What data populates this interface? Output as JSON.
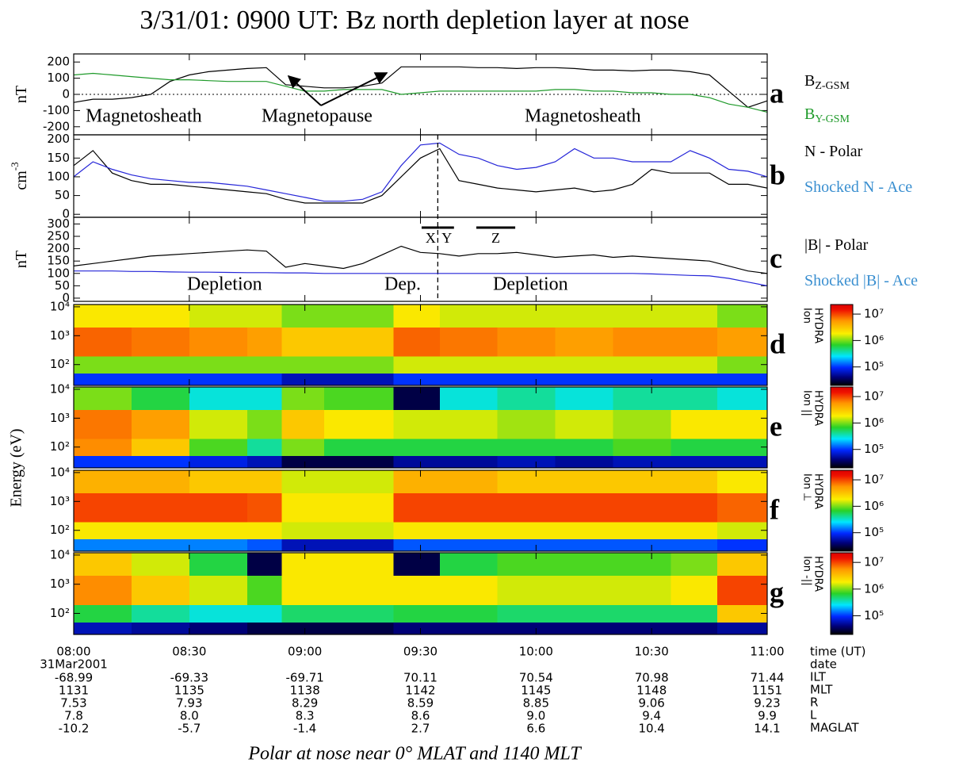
{
  "title": "3/31/01: 0900 UT: Bz north depletion layer at nose",
  "footer": "Polar at nose near 0° MLAT and 1140 MLT",
  "shared_ylabel": "Energy (eV)",
  "time_axis": {
    "xlim": [
      0,
      180
    ],
    "xticks": [
      {
        "value": 0,
        "label": "08:00"
      },
      {
        "value": 30,
        "label": "08:30"
      },
      {
        "value": 60,
        "label": "09:00"
      },
      {
        "value": 90,
        "label": "09:30"
      },
      {
        "value": 120,
        "label": "10:00"
      },
      {
        "value": 150,
        "label": "10:30"
      },
      {
        "value": 180,
        "label": "11:00"
      }
    ]
  },
  "ephemeris": {
    "labels": [
      "time (UT)",
      "date",
      "ILT",
      "MLT",
      "R",
      "L",
      "MAGLAT"
    ],
    "date": "31Mar2001",
    "rows": [
      [
        "-68.99",
        "-69.33",
        "-69.71",
        "70.11",
        "70.54",
        "70.98",
        "71.44"
      ],
      [
        "1131",
        "1135",
        "1138",
        "1142",
        "1145",
        "1148",
        "1151"
      ],
      [
        "7.53",
        "7.93",
        "8.29",
        "8.59",
        "8.85",
        "9.06",
        "9.23"
      ],
      [
        "7.8",
        "8.0",
        "8.3",
        "8.6",
        "9.0",
        "9.4",
        "9.9"
      ],
      [
        "-10.2",
        "-5.7",
        "-1.4",
        "2.7",
        "6.6",
        "10.4",
        "14.1"
      ]
    ]
  },
  "chart_data": [
    {
      "type": "line",
      "panel_label": "a",
      "ylabel": "nT",
      "ylim": [
        -250,
        250
      ],
      "yticks": [
        -200,
        -100,
        0,
        100,
        200
      ],
      "zero_line": true,
      "x": [
        0,
        5,
        10,
        15,
        20,
        25,
        30,
        35,
        40,
        45,
        50,
        55,
        60,
        65,
        70,
        75,
        80,
        85,
        90,
        95,
        100,
        105,
        110,
        115,
        120,
        125,
        130,
        135,
        140,
        145,
        150,
        155,
        160,
        165,
        170,
        175,
        180
      ],
      "series": [
        {
          "name": "B",
          "subscript": "Z-GSM",
          "color": "#000000",
          "values": [
            -50,
            -30,
            -30,
            -20,
            0,
            80,
            120,
            140,
            150,
            160,
            165,
            60,
            50,
            40,
            40,
            50,
            70,
            170,
            170,
            170,
            170,
            165,
            165,
            160,
            165,
            165,
            160,
            150,
            150,
            145,
            150,
            150,
            140,
            120,
            20,
            -80,
            -40
          ]
        },
        {
          "name": "B",
          "subscript": "Y-GSM",
          "color": "#1f9a2a",
          "values": [
            120,
            130,
            120,
            110,
            100,
            90,
            90,
            85,
            80,
            80,
            80,
            50,
            20,
            20,
            30,
            30,
            30,
            0,
            10,
            20,
            20,
            20,
            20,
            20,
            20,
            30,
            30,
            20,
            20,
            10,
            10,
            0,
            0,
            -20,
            -60,
            -80,
            -110
          ]
        }
      ],
      "annotations": [
        "Magnetosheath",
        "Magnetopause",
        "Magnetosheath"
      ]
    },
    {
      "type": "line",
      "panel_label": "b",
      "ylabel": "cm",
      "ylabel_sup": "-3",
      "ylim": [
        -8,
        212
      ],
      "yticks": [
        0,
        50,
        100,
        150,
        200
      ],
      "vline_x": 94.5,
      "x": [
        0,
        5,
        10,
        15,
        20,
        25,
        30,
        35,
        40,
        45,
        50,
        55,
        60,
        65,
        70,
        75,
        80,
        85,
        90,
        95,
        100,
        105,
        110,
        115,
        120,
        125,
        130,
        135,
        140,
        145,
        150,
        155,
        160,
        165,
        170,
        175,
        180
      ],
      "series": [
        {
          "name": "N - Polar",
          "color": "#000000",
          "values": [
            130,
            170,
            110,
            90,
            80,
            80,
            75,
            70,
            65,
            60,
            55,
            40,
            30,
            30,
            30,
            30,
            50,
            100,
            150,
            175,
            90,
            80,
            70,
            65,
            60,
            65,
            70,
            60,
            65,
            80,
            120,
            110,
            110,
            110,
            80,
            80,
            70
          ]
        },
        {
          "name": "Shocked N - Ace",
          "color": "#2525d8",
          "legend_color": "#3a8fd0",
          "values": [
            100,
            140,
            120,
            105,
            95,
            90,
            85,
            85,
            80,
            75,
            65,
            55,
            45,
            35,
            35,
            40,
            60,
            130,
            185,
            190,
            160,
            150,
            130,
            120,
            125,
            140,
            175,
            150,
            150,
            140,
            140,
            140,
            170,
            150,
            120,
            115,
            100
          ]
        }
      ]
    },
    {
      "type": "line",
      "panel_label": "c",
      "ylabel": "nT",
      "ylim": [
        -13,
        327
      ],
      "yticks": [
        0,
        50,
        100,
        150,
        200,
        250,
        300
      ],
      "x": [
        0,
        5,
        10,
        15,
        20,
        25,
        30,
        35,
        40,
        45,
        50,
        55,
        60,
        65,
        70,
        75,
        80,
        85,
        90,
        95,
        100,
        105,
        110,
        115,
        120,
        125,
        130,
        135,
        140,
        145,
        150,
        155,
        160,
        165,
        170,
        175,
        180
      ],
      "series": [
        {
          "name": "|B| - Polar",
          "color": "#000000",
          "values": [
            130,
            140,
            150,
            160,
            170,
            175,
            180,
            185,
            190,
            195,
            190,
            125,
            140,
            130,
            120,
            140,
            175,
            210,
            185,
            180,
            170,
            180,
            180,
            185,
            175,
            165,
            170,
            175,
            165,
            170,
            165,
            160,
            155,
            150,
            130,
            110,
            100
          ]
        },
        {
          "name": "Shocked |B| - Ace",
          "color": "#2525d8",
          "legend_color": "#3a8fd0",
          "values": [
            110,
            110,
            110,
            108,
            108,
            106,
            105,
            105,
            104,
            103,
            103,
            102,
            102,
            100,
            100,
            100,
            100,
            100,
            100,
            100,
            100,
            100,
            100,
            100,
            100,
            100,
            100,
            100,
            100,
            100,
            98,
            95,
            92,
            90,
            80,
            65,
            50
          ]
        }
      ],
      "intervals": [
        {
          "label": "X",
          "x": [
            90.3,
            95
          ]
        },
        {
          "label": "Y",
          "x": [
            95,
            98.7
          ]
        },
        {
          "label": "Z",
          "x": [
            104.5,
            114.6
          ]
        }
      ],
      "annotations": [
        "Depletion",
        "Dep.",
        "Depletion"
      ]
    },
    {
      "type": "heatmap",
      "panel_label": "d",
      "log_y": true,
      "ylim": [
        19,
        12000
      ],
      "yticks": [
        {
          "value": 100,
          "label": "10²"
        },
        {
          "value": 1000,
          "label": "10³"
        },
        {
          "value": 10000,
          "label": "10⁴"
        }
      ],
      "time_bins": [
        0,
        15,
        30,
        45,
        54,
        65,
        75,
        83,
        95,
        110,
        125,
        140,
        155,
        167,
        180
      ],
      "energy_bins": [
        19,
        50,
        200,
        2000,
        12000
      ],
      "z": [
        [
          100000.0,
          100000.0,
          100000.0,
          100000.0,
          60000.0,
          60000.0,
          60000.0,
          100000.0,
          100000.0,
          100000.0,
          100000.0,
          100000.0,
          100000.0,
          100000.0
        ],
        [
          1000000.0,
          1000000.0,
          1000000.0,
          1000000.0,
          1000000.0,
          1000000.0,
          1000000.0,
          1500000.0,
          1500000.0,
          1500000.0,
          1500000.0,
          1500000.0,
          1500000.0,
          1000000.0
        ],
        [
          8000000.0,
          7000000.0,
          6000000.0,
          5000000.0,
          3000000.0,
          3000000.0,
          3000000.0,
          8000000.0,
          7000000.0,
          6000000.0,
          5000000.0,
          6000000.0,
          6000000.0,
          5000000.0
        ],
        [
          2000000.0,
          2000000.0,
          1500000.0,
          1500000.0,
          1000000.0,
          1000000.0,
          1000000.0,
          2000000.0,
          1500000.0,
          1500000.0,
          1500000.0,
          1500000.0,
          1500000.0,
          1000000.0
        ]
      ],
      "zlim": [
        20000,
        23000000
      ],
      "zticks": [
        {
          "value": 100000,
          "label": "10⁵"
        },
        {
          "value": 1000000,
          "label": "10⁶"
        },
        {
          "value": 10000000,
          "label": "10⁷"
        }
      ],
      "colorbar_label": [
        "HYDRA",
        "Ion"
      ]
    },
    {
      "type": "heatmap",
      "panel_label": "e",
      "log_y": true,
      "ylim": [
        19,
        12000
      ],
      "yticks": [
        {
          "value": 100,
          "label": "10²"
        },
        {
          "value": 1000,
          "label": "10³"
        },
        {
          "value": 10000,
          "label": "10⁴"
        }
      ],
      "time_bins": [
        0,
        15,
        30,
        45,
        54,
        65,
        75,
        83,
        95,
        110,
        125,
        140,
        155,
        167,
        180
      ],
      "energy_bins": [
        19,
        50,
        200,
        2000,
        12000
      ],
      "z": [
        [
          100000.0,
          100000.0,
          80000.0,
          60000.0,
          30000.0,
          30000.0,
          30000.0,
          50000.0,
          50000.0,
          60000.0,
          50000.0,
          60000.0,
          60000.0,
          60000.0
        ],
        [
          6000000.0,
          3000000.0,
          800000.0,
          400000.0,
          1000000.0,
          600000.0,
          600000.0,
          600000.0,
          600000.0,
          600000.0,
          600000.0,
          800000.0,
          600000.0,
          600000.0
        ],
        [
          7000000.0,
          5000000.0,
          1500000.0,
          1000000.0,
          3000000.0,
          2000000.0,
          2000000.0,
          1500000.0,
          1500000.0,
          1200000.0,
          1500000.0,
          1200000.0,
          2000000.0,
          2000000.0
        ],
        [
          1000000.0,
          600000.0,
          300000.0,
          300000.0,
          1000000.0,
          800000.0,
          800000.0,
          30000.0,
          300000.0,
          400000.0,
          300000.0,
          400000.0,
          400000.0,
          300000.0
        ]
      ],
      "zlim": [
        20000,
        23000000
      ],
      "zticks": [
        {
          "value": 100000,
          "label": "10⁵"
        },
        {
          "value": 1000000,
          "label": "10⁶"
        },
        {
          "value": 10000000,
          "label": "10⁷"
        }
      ],
      "colorbar_label": [
        "HYDRA",
        "Ion ||"
      ]
    },
    {
      "type": "heatmap",
      "panel_label": "f",
      "log_y": true,
      "ylim": [
        19,
        12000
      ],
      "yticks": [
        {
          "value": 100,
          "label": "10²"
        },
        {
          "value": 1000,
          "label": "10³"
        },
        {
          "value": 10000,
          "label": "10⁴"
        }
      ],
      "time_bins": [
        0,
        15,
        30,
        45,
        54,
        65,
        75,
        83,
        95,
        110,
        125,
        140,
        155,
        167,
        180
      ],
      "energy_bins": [
        19,
        50,
        200,
        2000,
        12000
      ],
      "z": [
        [
          150000.0,
          150000.0,
          150000.0,
          120000.0,
          60000.0,
          60000.0,
          60000.0,
          120000.0,
          120000.0,
          120000.0,
          120000.0,
          120000.0,
          120000.0,
          100000.0
        ],
        [
          2000000.0,
          2000000.0,
          2000000.0,
          2000000.0,
          1500000.0,
          1500000.0,
          1500000.0,
          2000000.0,
          2000000.0,
          2000000.0,
          2000000.0,
          2000000.0,
          2000000.0,
          1500000.0
        ],
        [
          10000000.0,
          10000000.0,
          10000000.0,
          9000000.0,
          2000000.0,
          2000000.0,
          2000000.0,
          10000000.0,
          10000000.0,
          10000000.0,
          10000000.0,
          10000000.0,
          10000000.0,
          8000000.0
        ],
        [
          4000000.0,
          4000000.0,
          3000000.0,
          3000000.0,
          1500000.0,
          1500000.0,
          1500000.0,
          4000000.0,
          4000000.0,
          3000000.0,
          3000000.0,
          3000000.0,
          3000000.0,
          2000000.0
        ]
      ],
      "zlim": [
        20000,
        23000000
      ],
      "zticks": [
        {
          "value": 100000,
          "label": "10⁵"
        },
        {
          "value": 1000000,
          "label": "10⁶"
        },
        {
          "value": 10000000,
          "label": "10⁷"
        }
      ],
      "colorbar_label": [
        "HYDRA",
        "Ion ⊥"
      ]
    },
    {
      "type": "heatmap",
      "panel_label": "g",
      "log_y": true,
      "ylim": [
        19,
        12000
      ],
      "yticks": [
        {
          "value": 100,
          "label": "10²"
        },
        {
          "value": 1000,
          "label": "10³"
        },
        {
          "value": 10000,
          "label": "10⁴"
        }
      ],
      "time_bins": [
        0,
        15,
        30,
        45,
        54,
        65,
        75,
        83,
        95,
        110,
        125,
        140,
        155,
        167,
        180
      ],
      "energy_bins": [
        19,
        50,
        200,
        2000,
        12000
      ],
      "z": [
        [
          60000.0,
          50000.0,
          40000.0,
          30000.0,
          30000.0,
          30000.0,
          30000.0,
          40000.0,
          40000.0,
          40000.0,
          40000.0,
          40000.0,
          40000.0,
          50000.0
        ],
        [
          600000.0,
          400000.0,
          300000.0,
          300000.0,
          500000.0,
          500000.0,
          500000.0,
          600000.0,
          600000.0,
          500000.0,
          500000.0,
          500000.0,
          500000.0,
          3000000.0
        ],
        [
          6000000.0,
          3000000.0,
          1500000.0,
          800000.0,
          2000000.0,
          2000000.0,
          2000000.0,
          2000000.0,
          2000000.0,
          1500000.0,
          1500000.0,
          1500000.0,
          2000000.0,
          10000000.0
        ],
        [
          3000000.0,
          1500000.0,
          600000.0,
          30000.0,
          2000000.0,
          2000000.0,
          2000000.0,
          30000.0,
          600000.0,
          800000.0,
          800000.0,
          800000.0,
          1000000.0,
          3000000.0
        ]
      ],
      "zlim": [
        20000,
        23000000
      ],
      "zticks": [
        {
          "value": 100000,
          "label": "10⁵"
        },
        {
          "value": 1000000,
          "label": "10⁶"
        },
        {
          "value": 10000000,
          "label": "10⁷"
        }
      ],
      "colorbar_label": [
        "HYDRA",
        "Ion -||"
      ]
    }
  ]
}
